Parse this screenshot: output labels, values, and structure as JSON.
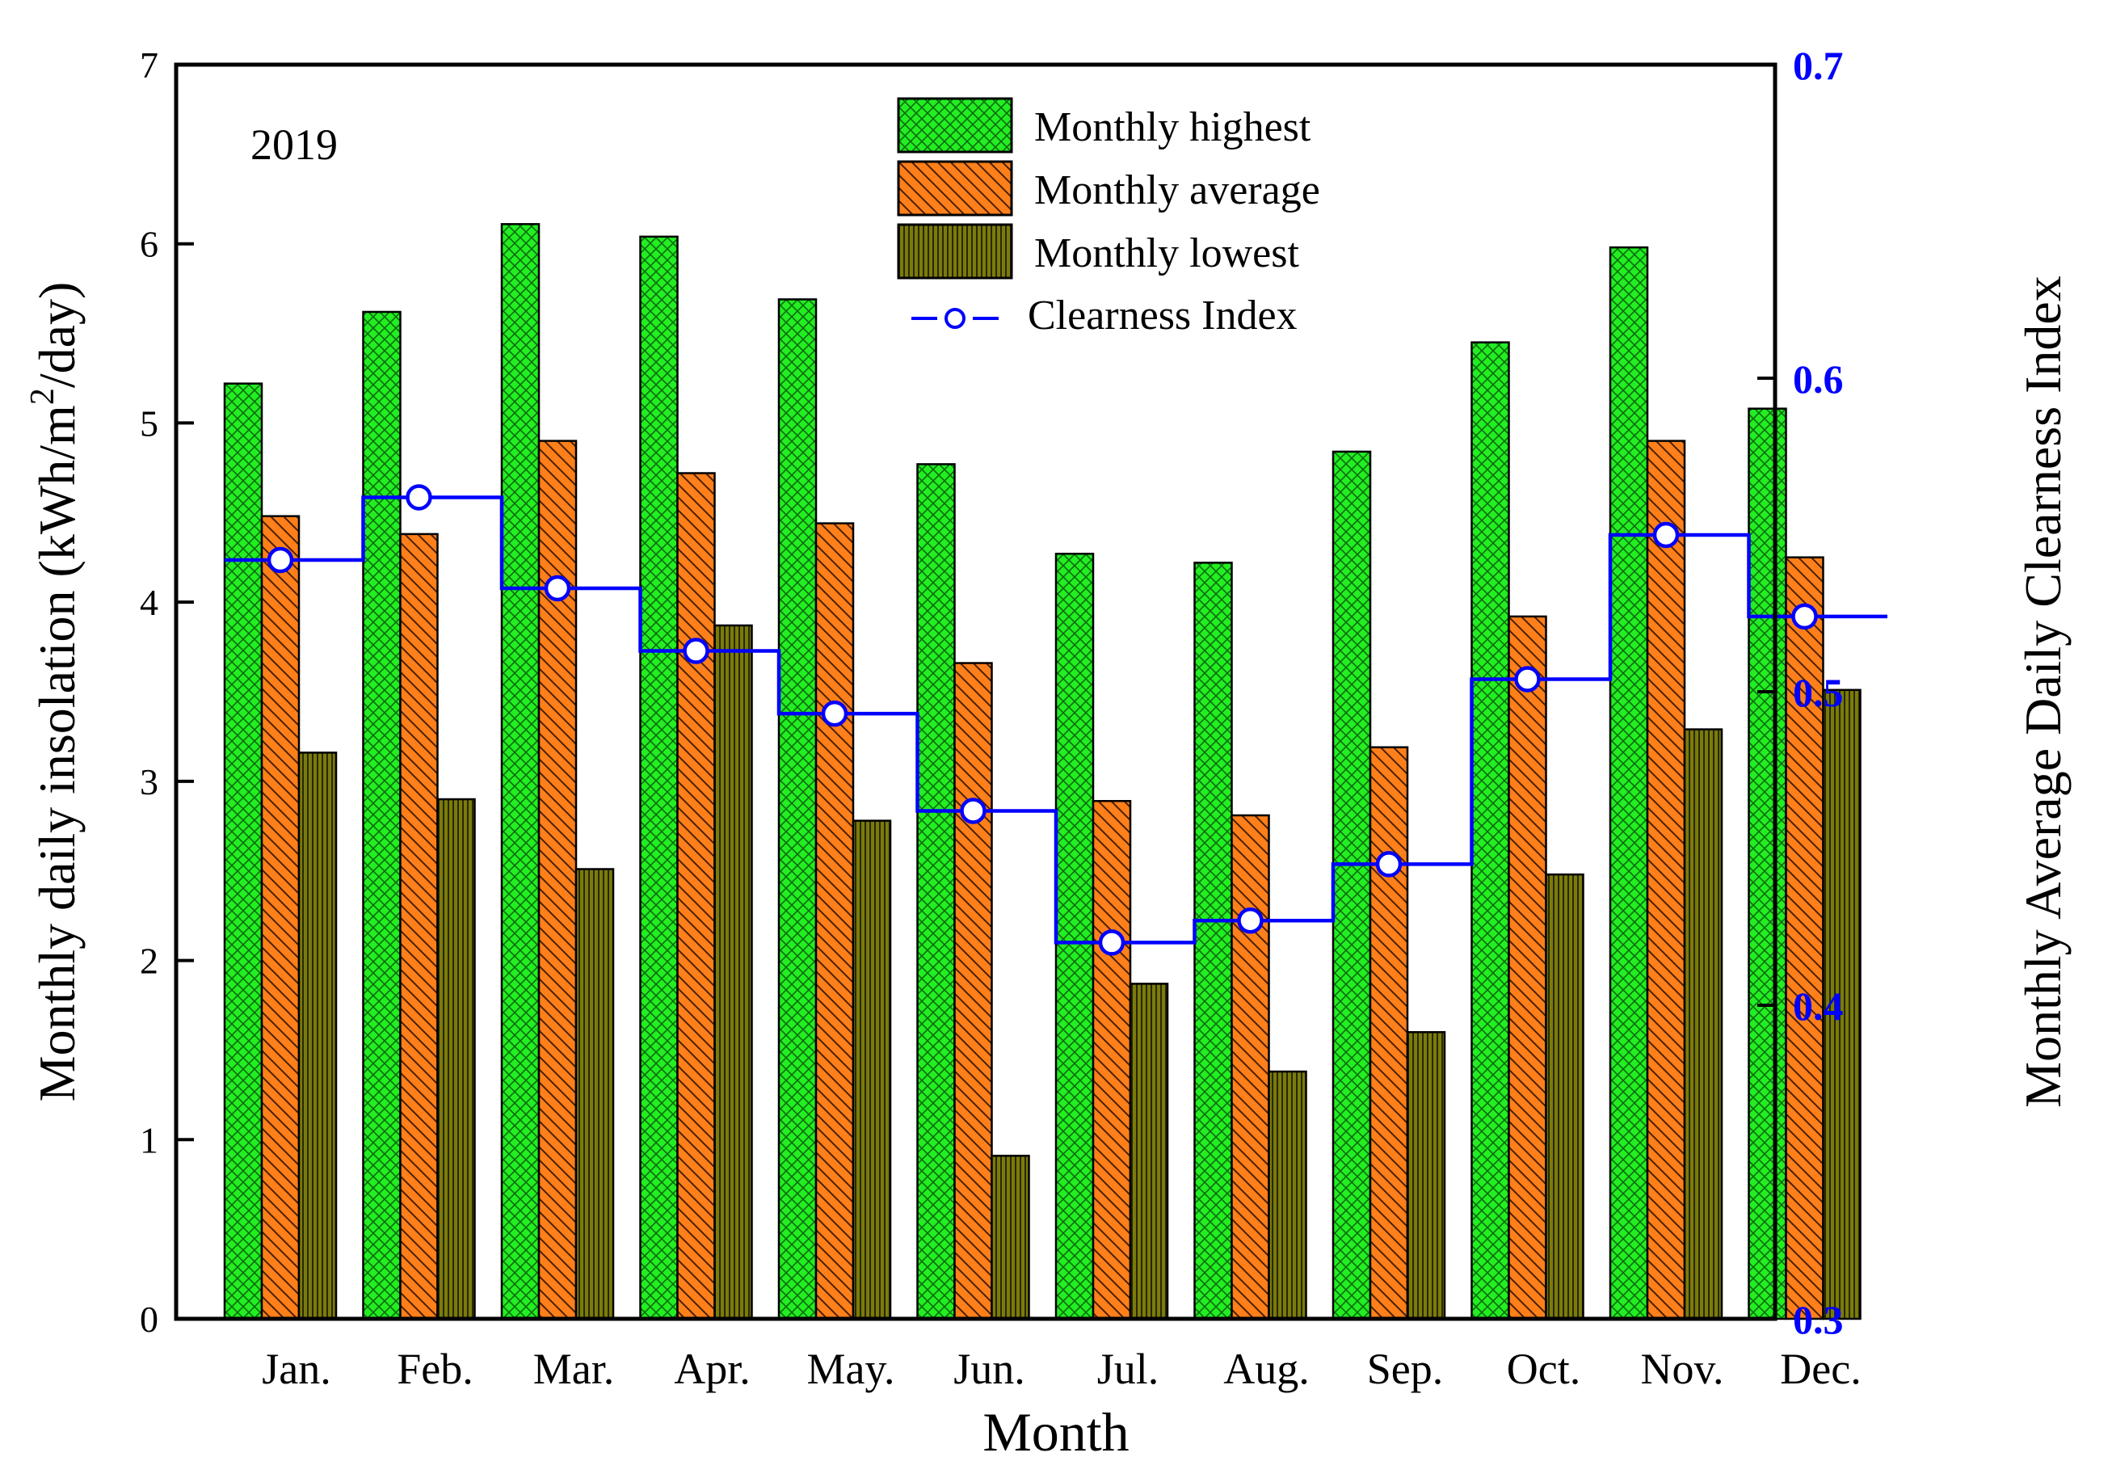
{
  "chart_data": {
    "type": "bar",
    "annotation": "2019",
    "xlabel": "Month",
    "ylabel": "Monthly daily insolation (kWh/m2/day)",
    "ylabel_parts": {
      "pre": "Monthly daily insolation (kWh/m",
      "sup": "2",
      "post": "/day)"
    },
    "y2label": "Monthly Average Daily Clearness Index",
    "ylim": [
      0,
      7
    ],
    "yticks": [
      "0",
      "1",
      "2",
      "3",
      "4",
      "5",
      "6",
      "7"
    ],
    "y2lim": [
      0.3,
      0.7
    ],
    "y2ticks": [
      "0.3",
      "0.4",
      "0.5",
      "0.6",
      "0.7"
    ],
    "categories": [
      "Jan.",
      "Feb.",
      "Mar.",
      "Apr.",
      "May.",
      "Jun.",
      "Jul.",
      "Aug.",
      "Sep.",
      "Oct.",
      "Nov.",
      "Dec."
    ],
    "series": [
      {
        "name": "Monthly highest",
        "axis": "left",
        "kind": "bar",
        "color": "#22ee22",
        "pattern": "crosshatch",
        "values": [
          5.22,
          5.62,
          6.11,
          6.04,
          5.69,
          4.77,
          4.27,
          4.22,
          4.84,
          5.45,
          5.98,
          5.08
        ]
      },
      {
        "name": "Monthly average",
        "axis": "left",
        "kind": "bar",
        "color": "#ff7f1a",
        "pattern": "diagonal",
        "values": [
          4.48,
          4.38,
          4.9,
          4.72,
          4.44,
          3.66,
          2.89,
          2.81,
          3.19,
          3.92,
          4.9,
          4.25
        ]
      },
      {
        "name": "Monthly lowest",
        "axis": "left",
        "kind": "bar",
        "color": "#7b7b0c",
        "pattern": "vertical",
        "values": [
          3.16,
          2.9,
          2.51,
          3.87,
          2.78,
          0.91,
          1.87,
          1.38,
          1.6,
          2.48,
          3.29,
          3.51
        ]
      },
      {
        "name": "Clearness Index",
        "axis": "right",
        "kind": "step-line",
        "color": "#0000ff",
        "values": [
          0.542,
          0.562,
          0.533,
          0.513,
          0.493,
          0.462,
          0.42,
          0.427,
          0.445,
          0.504,
          0.55,
          0.524
        ]
      }
    ],
    "legend_position": "top-center",
    "legend_line_glyph": "--o--",
    "grid": false
  }
}
